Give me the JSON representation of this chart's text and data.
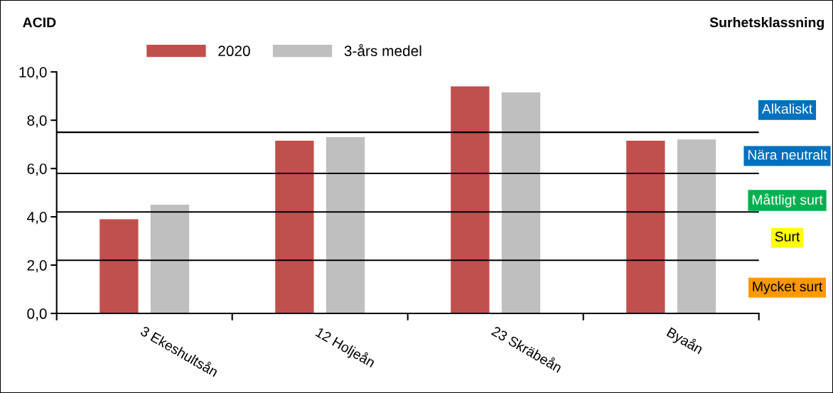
{
  "chart_data": {
    "type": "bar",
    "title": "ACID",
    "categories": [
      "3 Ekeshultsån",
      "12 Holjeån",
      "23 Skräbeån",
      "Byaån"
    ],
    "series": [
      {
        "name": "2020",
        "color": "#c0504d",
        "values": [
          3.9,
          7.15,
          9.4,
          7.15
        ]
      },
      {
        "name": "3-års medel",
        "color": "#bfbfbf",
        "values": [
          4.5,
          7.3,
          9.15,
          7.2
        ]
      }
    ],
    "ylim": [
      0,
      10
    ],
    "yticks": [
      {
        "value": 0,
        "label": "0,0"
      },
      {
        "value": 2,
        "label": "2,0"
      },
      {
        "value": 4,
        "label": "4,0"
      },
      {
        "value": 6,
        "label": "6,0"
      },
      {
        "value": 8,
        "label": "8,0"
      },
      {
        "value": 10,
        "label": "10,0"
      }
    ],
    "ref_lines": [
      {
        "axis": "y",
        "value": 7.5,
        "color": "#000000"
      },
      {
        "axis": "y",
        "value": 5.8,
        "color": "#000000"
      },
      {
        "axis": "y",
        "value": 4.2,
        "color": "#000000"
      },
      {
        "axis": "y",
        "value": 2.2,
        "color": "#000000"
      }
    ],
    "annotations": [
      "Surhetsklassning",
      "Alkaliskt",
      "Nära neutralt",
      "Måttligt surt",
      "Surt",
      "Mycket surt"
    ],
    "legend": "top left",
    "grid": false
  }
}
